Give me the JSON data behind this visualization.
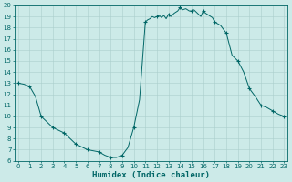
{
  "x": [
    0,
    0.5,
    1,
    1.5,
    2,
    3,
    4,
    5,
    6,
    7,
    7.5,
    8,
    8.5,
    9,
    9.5,
    10,
    10.5,
    11,
    11.2,
    11.4,
    11.6,
    11.8,
    12,
    12.2,
    12.4,
    12.6,
    12.8,
    13,
    13.2,
    13.5,
    13.8,
    14,
    14.2,
    14.5,
    14.8,
    15,
    15.2,
    15.5,
    15.8,
    16,
    16.2,
    16.5,
    16.8,
    17,
    17.5,
    18,
    18.5,
    19,
    19.5,
    20,
    20.5,
    21,
    21.5,
    22,
    22.5,
    23
  ],
  "y": [
    13.0,
    12.9,
    12.7,
    11.8,
    10.0,
    9.0,
    8.5,
    7.5,
    7.0,
    6.8,
    6.5,
    6.3,
    6.3,
    6.5,
    7.2,
    9.0,
    11.5,
    18.5,
    18.7,
    18.8,
    19.0,
    18.9,
    19.0,
    19.1,
    18.9,
    19.1,
    18.8,
    19.2,
    19.0,
    19.3,
    19.5,
    19.8,
    19.6,
    19.7,
    19.5,
    19.5,
    19.6,
    19.3,
    19.0,
    19.5,
    19.3,
    19.1,
    18.9,
    18.5,
    18.2,
    17.5,
    15.5,
    15.0,
    14.0,
    12.5,
    11.8,
    11.0,
    10.8,
    10.5,
    10.2,
    10.0
  ],
  "marker_x": [
    0,
    1,
    2,
    3,
    4,
    5,
    6,
    7,
    8,
    9,
    10,
    11,
    12,
    13,
    14,
    15,
    16,
    17,
    18,
    19,
    20,
    21,
    22,
    23
  ],
  "marker_y": [
    13.0,
    12.7,
    10.0,
    9.0,
    8.5,
    7.5,
    7.0,
    6.8,
    6.3,
    6.5,
    9.0,
    18.5,
    19.0,
    19.2,
    19.8,
    19.5,
    19.5,
    18.5,
    17.5,
    15.0,
    12.5,
    11.0,
    10.5,
    10.0
  ],
  "line_color": "#006666",
  "marker": "+",
  "marker_size": 3.5,
  "bg_color": "#cceae8",
  "grid_color": "#aacfcd",
  "xlabel": "Humidex (Indice chaleur)",
  "ylim": [
    6,
    20
  ],
  "xlim_min": -0.3,
  "xlim_max": 23.3,
  "yticks": [
    6,
    7,
    8,
    9,
    10,
    11,
    12,
    13,
    14,
    15,
    16,
    17,
    18,
    19,
    20
  ],
  "xticks": [
    0,
    1,
    2,
    3,
    4,
    5,
    6,
    7,
    8,
    9,
    10,
    11,
    12,
    13,
    14,
    15,
    16,
    17,
    18,
    19,
    20,
    21,
    22,
    23
  ],
  "tick_fontsize": 5.0,
  "label_fontsize": 6.5,
  "spine_color": "#006666",
  "linewidth": 0.7
}
